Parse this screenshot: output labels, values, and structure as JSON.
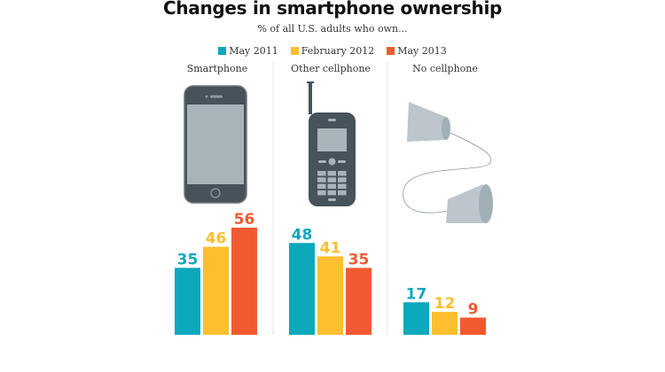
{
  "chart_data": {
    "type": "bar",
    "title": "Changes in smartphone ownership",
    "subtitle": "% of all U.S. adults who own...",
    "categories": [
      "Smartphone",
      "Other cellphone",
      "No cellphone"
    ],
    "series": [
      {
        "name": "May 2011",
        "color": "#0ca8bc",
        "values": [
          35,
          48,
          17
        ]
      },
      {
        "name": "February 2012",
        "color": "#fdbf2d",
        "values": [
          46,
          41,
          12
        ]
      },
      {
        "name": "May 2013",
        "color": "#f15a30",
        "values": [
          56,
          35,
          9
        ]
      }
    ],
    "ylim": [
      0,
      60
    ],
    "grid": false,
    "legend_position": "top",
    "icons": [
      "smartphone-icon",
      "cellphone-icon",
      "tin-can-phone-icon"
    ]
  }
}
